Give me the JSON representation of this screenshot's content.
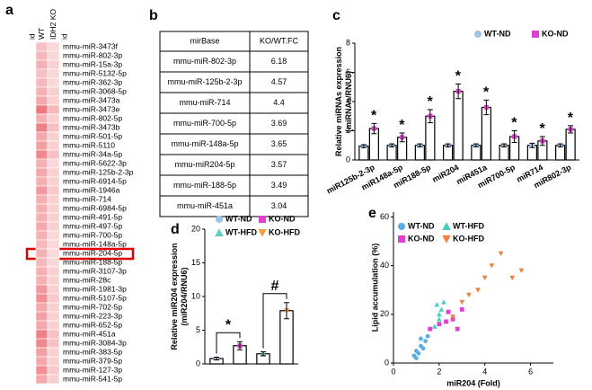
{
  "chart_data": [
    {
      "type": "heatmap",
      "panel": "a",
      "side_label": "id",
      "row_header": "id",
      "rows": [
        "mmu-miR-3473f",
        "mmu-miR-802-3p",
        "mmu-miR-15a-3p",
        "mmu-miR-5132-5p",
        "mmu-miR-362-3p",
        "mmu-miR-3068-5p",
        "mmu-miR-3473a",
        "mmu-miR-3473e",
        "mmu-miR-802-5p",
        "mmu-miR-3473b",
        "mmu-miR-501-5p",
        "mmu-miR-5110",
        "mmu-miR-34a-5p",
        "mmu-miR-5622-3p",
        "mmu-miR-125b-2-3p",
        "mmu-miR-6914-5p",
        "mmu-miR-1946a",
        "mmu-miR-714",
        "mmu-miR-6984-5p",
        "mmu-miR-491-5p",
        "mmu-miR-497-5p",
        "mmu-miR-700-5p",
        "mmu-miR-148a-5p",
        "mmu-miR-204-5p",
        "mmu-miR-188-5p",
        "mmu-miR-3107-3p",
        "mmu-miR-28c",
        "mmu-miR-1981-3p",
        "mmu-miR-5107-5p",
        "mmu-miR-702-5p",
        "mmu-miR-223-3p",
        "mmu-miR-652-5p",
        "mmu-miR-451a",
        "mmu-miR-3084-3p",
        "mmu-miR-383-5p",
        "mmu-miR-379-5p",
        "mmu-miR-127-3p",
        "mmu-miR-541-5p"
      ],
      "series": [
        {
          "name": "WT",
          "values": [
            0.3,
            0.35,
            0.4,
            0.3,
            0.35,
            0.4,
            0.45,
            0.75,
            0.4,
            0.7,
            0.45,
            0.5,
            0.65,
            0.4,
            0.45,
            0.4,
            0.55,
            0.4,
            0.4,
            0.4,
            0.45,
            0.4,
            0.35,
            0.4,
            0.35,
            0.4,
            0.4,
            0.55,
            0.6,
            0.45,
            0.5,
            0.45,
            0.7,
            0.65,
            0.5,
            0.45,
            0.6,
            0.45
          ]
        },
        {
          "name": "IDH2 KO",
          "values": [
            0.15,
            0.15,
            0.2,
            0.15,
            0.15,
            0.2,
            0.2,
            0.35,
            0.2,
            0.3,
            0.2,
            0.2,
            0.3,
            0.15,
            0.2,
            0.2,
            0.25,
            0.2,
            0.2,
            0.2,
            0.2,
            0.15,
            0.15,
            0.15,
            0.15,
            0.2,
            0.2,
            0.2,
            0.25,
            0.2,
            0.2,
            0.2,
            0.3,
            0.3,
            0.2,
            0.2,
            0.25,
            0.2
          ]
        }
      ],
      "vlim": [
        0,
        1
      ],
      "low_color": "#fdf0f0",
      "high_color": "#e8505a"
    },
    {
      "type": "table",
      "panel": "b",
      "header": [
        "mirBase",
        "KO/WT.FC"
      ],
      "rows": [
        [
          "mmu-miR-802-3p",
          6.18
        ],
        [
          "mmu-miR-125b-2-3p",
          4.57
        ],
        [
          "mmu-miR-714",
          4.4
        ],
        [
          "mmu-miR-700-5p",
          3.69
        ],
        [
          "mmu-miR-148a-5p",
          3.65
        ],
        [
          "mmu-miR204-5p",
          3.57
        ],
        [
          "mmu-miR-188-5p",
          3.49
        ],
        [
          "mmu-miR-451a",
          3.04
        ]
      ]
    },
    {
      "type": "bar",
      "panel": "c",
      "y_label": [
        "Relative miRNAs expression",
        "(miRNAs/RNU6)"
      ],
      "categories": [
        "miR125b-2-3p",
        "miR148a-5p",
        "miR188-5p",
        "miR204",
        "miR451a",
        "miR700-5p",
        "miR714",
        "miR802-3p"
      ],
      "series": [
        {
          "name": "WT-ND",
          "color": "#9dc3e6",
          "marker": "circle",
          "values": [
            0.95,
            1.0,
            1.0,
            1.0,
            1.0,
            1.0,
            1.0,
            1.0
          ],
          "errors": [
            0.1,
            0.1,
            0.1,
            0.1,
            0.1,
            0.1,
            0.15,
            0.1
          ]
        },
        {
          "name": "KO-ND",
          "color": "#e040d0",
          "marker": "square",
          "values": [
            2.15,
            1.55,
            3.0,
            4.7,
            3.6,
            1.6,
            1.3,
            2.1
          ],
          "errors": [
            0.35,
            0.3,
            0.45,
            0.5,
            0.5,
            0.4,
            0.3,
            0.25
          ]
        }
      ],
      "annotations": [
        "*",
        "*",
        "*",
        "*",
        "*",
        "*",
        "*",
        "*"
      ],
      "ylim": [
        0,
        8
      ],
      "yticks": [
        0,
        2,
        4,
        6,
        8
      ]
    },
    {
      "type": "bar",
      "panel": "d",
      "y_label": [
        "Relative miR204 expression",
        "(miR204/RNU6)"
      ],
      "series": [
        {
          "name": "WT-ND",
          "color": "#9dc3e6",
          "marker": "circle",
          "values": [
            0.8
          ],
          "errors": [
            0.2
          ]
        },
        {
          "name": "KO-ND",
          "color": "#e040d0",
          "marker": "square",
          "values": [
            2.7
          ],
          "errors": [
            0.6
          ]
        },
        {
          "name": "WT-HFD",
          "color": "#5fd0c0",
          "marker": "triangle",
          "values": [
            1.5
          ],
          "errors": [
            0.3
          ]
        },
        {
          "name": "KO-HFD",
          "color": "#f0a040",
          "marker": "triangle-down",
          "values": [
            7.9
          ],
          "errors": [
            1.2
          ]
        }
      ],
      "annotations": [
        "*",
        "#"
      ],
      "ylim": [
        0,
        20
      ],
      "yticks": [
        0,
        5,
        10,
        15,
        20
      ]
    },
    {
      "type": "scatter",
      "panel": "e",
      "x_label": "miR204 (Fold)",
      "y_label": "Lipid accumulation (%)",
      "series": [
        {
          "name": "WT-ND",
          "color": "#5aaee0",
          "marker": "circle",
          "x": [
            0.9,
            1.0,
            1.1,
            1.2,
            1.3,
            1.4,
            1.5,
            1.2,
            1.0
          ],
          "y": [
            3,
            5,
            4,
            7,
            6,
            9,
            11,
            10,
            2
          ]
        },
        {
          "name": "WT-HFD",
          "color": "#40d0c0",
          "marker": "triangle",
          "x": [
            1.8,
            2.0,
            2.1,
            2.2,
            2.0,
            1.9
          ],
          "y": [
            15,
            18,
            22,
            25,
            20,
            24
          ]
        },
        {
          "name": "KO-ND",
          "color": "#e040d0",
          "marker": "square",
          "x": [
            1.6,
            2.0,
            2.3,
            2.6,
            2.8,
            3.0,
            2.4
          ],
          "y": [
            14,
            16,
            17,
            18,
            14,
            22,
            21
          ]
        },
        {
          "name": "KO-HFD",
          "color": "#f08040",
          "marker": "triangle-down",
          "x": [
            2.6,
            3.0,
            3.3,
            3.7,
            4.0,
            4.3,
            4.7,
            5.2,
            5.6
          ],
          "y": [
            19,
            25,
            28,
            30,
            35,
            40,
            45,
            35,
            38
          ]
        }
      ],
      "xlim": [
        0,
        7
      ],
      "xticks": [
        0,
        2,
        4,
        6
      ],
      "ylim": [
        0,
        62
      ],
      "yticks": [
        0,
        20,
        40,
        60
      ]
    }
  ]
}
